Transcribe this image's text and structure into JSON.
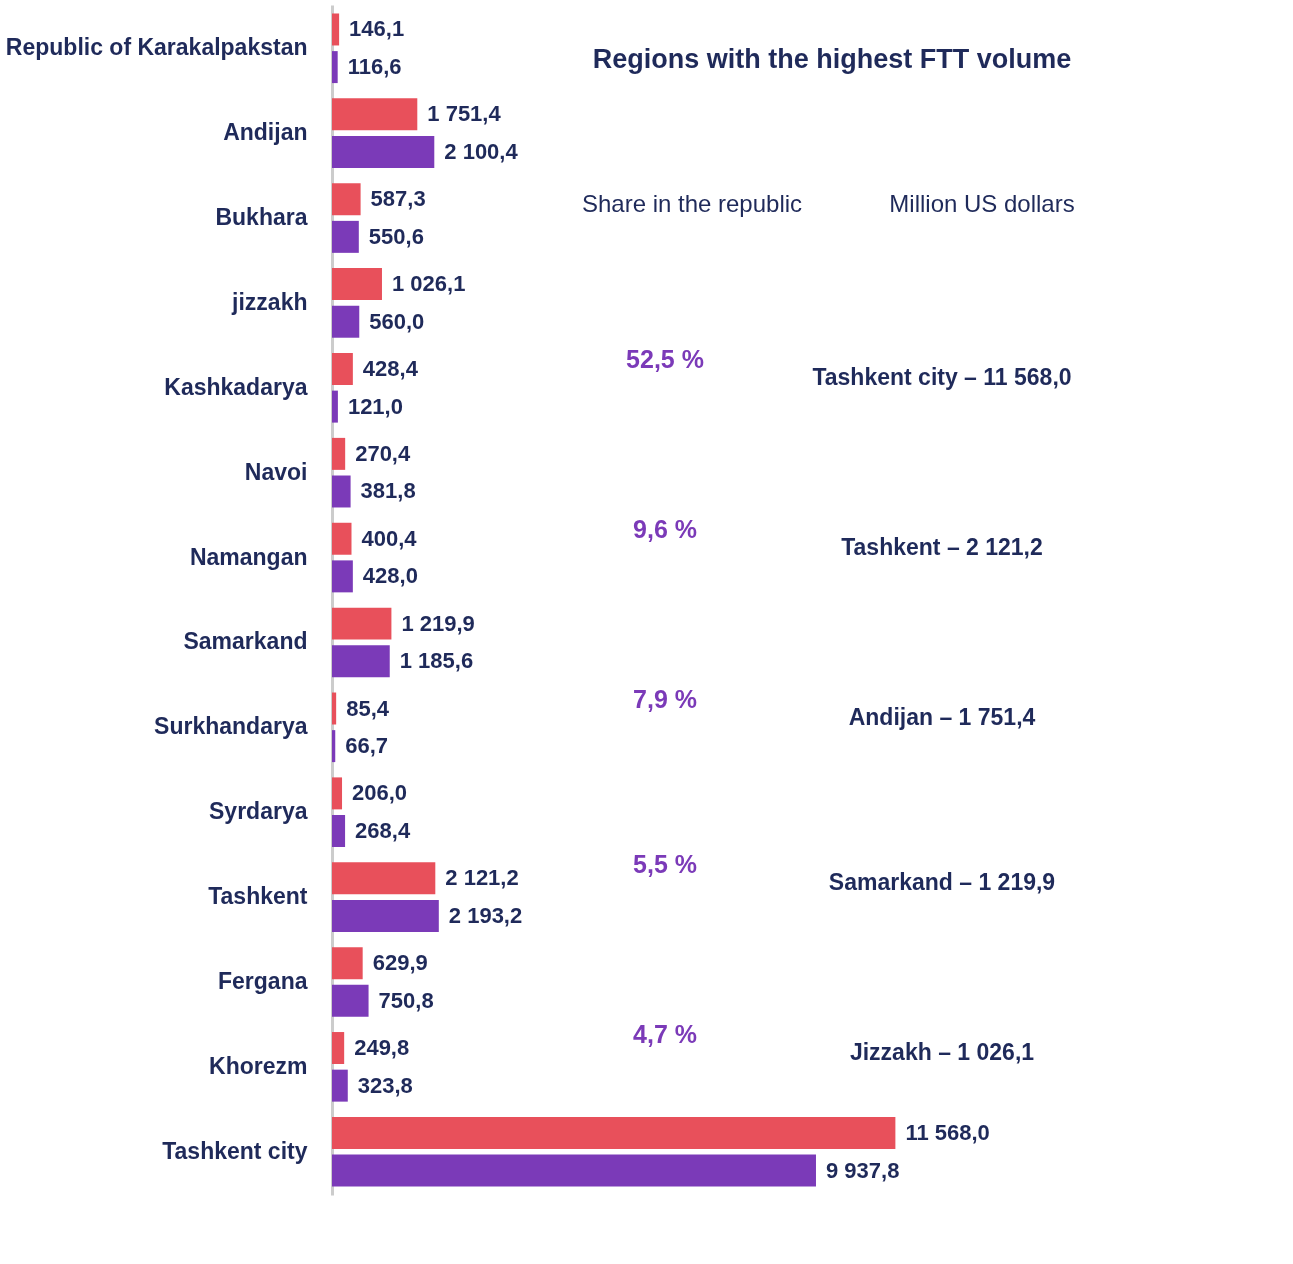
{
  "chart_data": {
    "type": "bar",
    "orientation": "horizontal",
    "title": "Regions with the highest FTT volume",
    "categories": [
      "Republic of Karakalpakstan",
      "Andijan",
      "Bukhara",
      "jizzakh",
      "Kashkadarya",
      "Navoi",
      "Namangan",
      "Samarkand",
      "Surkhandarya",
      "Syrdarya",
      "Tashkent",
      "Fergana",
      "Khorezm",
      "Tashkent city"
    ],
    "series": [
      {
        "color": "#e8505b",
        "values": [
          146.1,
          1751.4,
          587.3,
          1026.1,
          428.4,
          270.4,
          400.4,
          1219.9,
          85.4,
          206.0,
          2121.2,
          629.9,
          249.8,
          11568.0
        ],
        "value_labels": [
          "146,1",
          "1 751,4",
          "587,3",
          "1 026,1",
          "428,4",
          "270,4",
          "400,4",
          "1 219,9",
          "85,4",
          "206,0",
          "2 121,2",
          "629,9",
          "249,8",
          "11 568,0"
        ]
      },
      {
        "color": "#7b3ab8",
        "values": [
          116.6,
          2100.4,
          550.6,
          560.0,
          121.0,
          381.8,
          428.0,
          1185.6,
          66.7,
          268.4,
          2193.2,
          750.8,
          323.8,
          9937.8
        ],
        "value_labels": [
          "116,6",
          "2 100,4",
          "550,6",
          "560,0",
          "121,0",
          "381,8",
          "428,0",
          "1 185,6",
          "66,7",
          "268,4",
          "2 193,2",
          "750,8",
          "323,8",
          "9 937,8"
        ]
      }
    ],
    "annotations": [
      "Share in the republic",
      "Million US dollars",
      "52,5 %",
      "Tashkent city – 11 568,0",
      "9,6 %",
      "Tashkent – 2 121,2",
      "7,9 %",
      "Andijan – 1 751,4",
      "5,5 %",
      "Samarkand – 1 219,9",
      "4,7 %",
      "Jizzakh – 1 026,1"
    ],
    "legend": false,
    "grid": false
  }
}
